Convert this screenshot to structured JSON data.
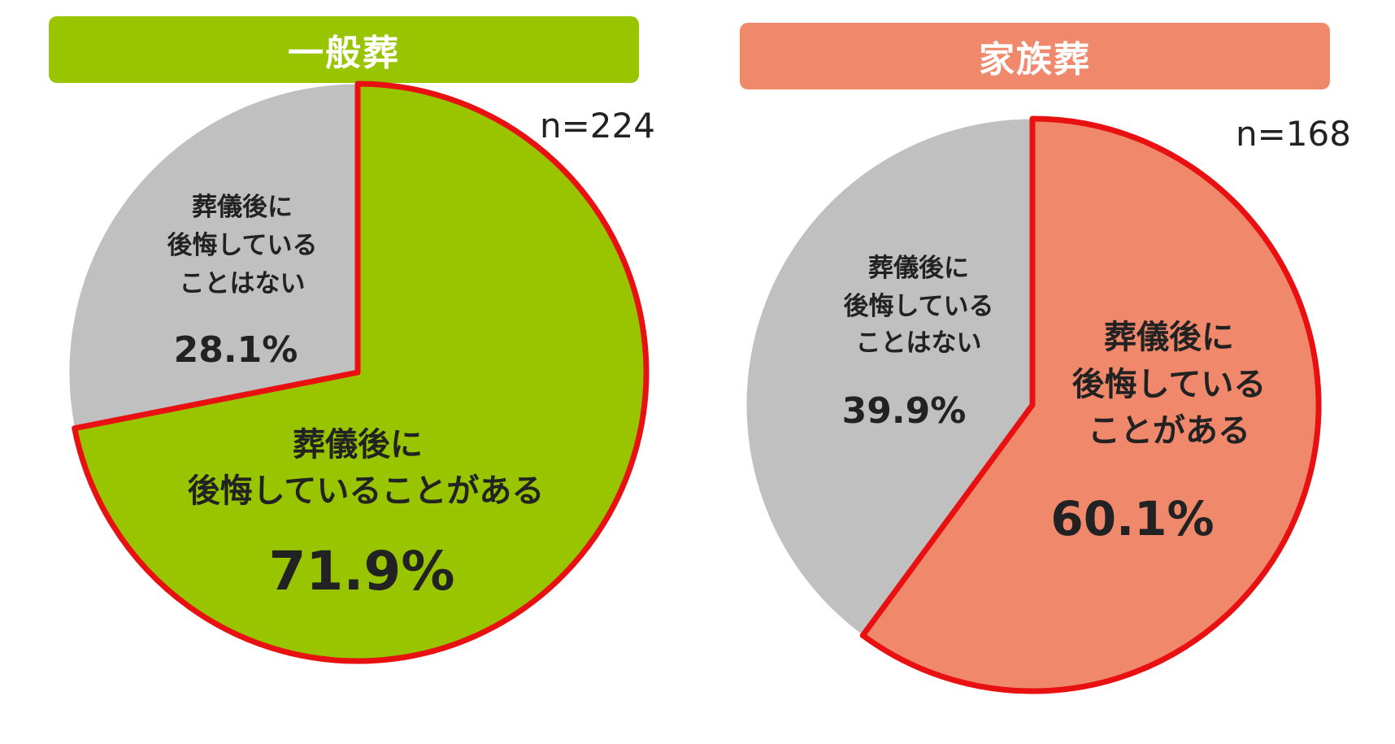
{
  "chart_data": [
    {
      "type": "pie",
      "title": "一般葬",
      "n_label": "n=224",
      "header_color": "#99c400",
      "outline_color": "#e81010",
      "slices": [
        {
          "label_lines": [
            "葬儀後に",
            "後悔していることがある"
          ],
          "value": 71.9,
          "value_label": "71.9%",
          "color": "#99c400",
          "highlighted": true
        },
        {
          "label_lines": [
            "葬儀後に",
            "後悔している",
            "ことはない"
          ],
          "value": 28.1,
          "value_label": "28.1%",
          "color": "#c0c0c0",
          "highlighted": false
        }
      ]
    },
    {
      "type": "pie",
      "title": "家族葬",
      "n_label": "n=168",
      "header_color": "#f0896c",
      "outline_color": "#e81010",
      "slices": [
        {
          "label_lines": [
            "葬儀後に",
            "後悔している",
            "ことがある"
          ],
          "value": 60.1,
          "value_label": "60.1%",
          "color": "#f0896c",
          "highlighted": true
        },
        {
          "label_lines": [
            "葬儀後に",
            "後悔している",
            "ことはない"
          ],
          "value": 39.9,
          "value_label": "39.9%",
          "color": "#c0c0c0",
          "highlighted": false
        }
      ]
    }
  ]
}
